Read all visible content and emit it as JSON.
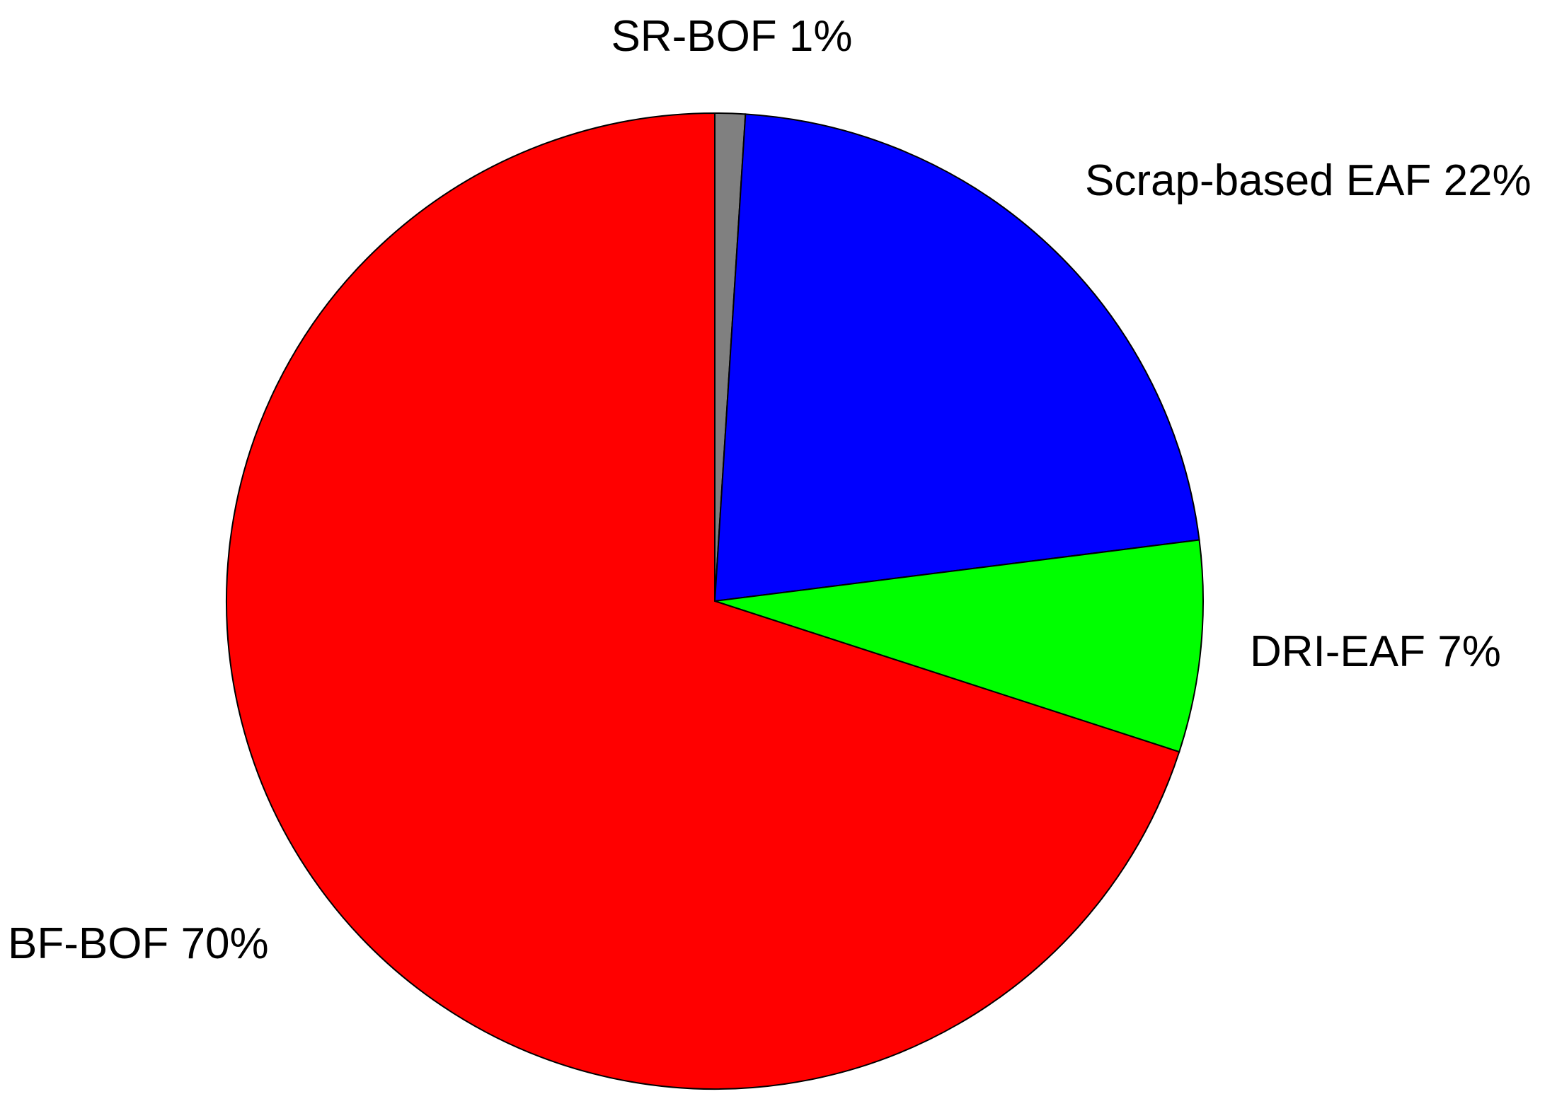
{
  "chart_data": {
    "type": "pie",
    "categories": [
      "SR-BOF",
      "Scrap-based EAF",
      "DRI-EAF",
      "BF-BOF"
    ],
    "values": [
      1,
      22,
      7,
      70
    ],
    "value_labels": [
      "1%",
      "22%",
      "7%",
      "70%"
    ],
    "colors": [
      "#808080",
      "#0000ff",
      "#00ff00",
      "#ff0000"
    ]
  }
}
